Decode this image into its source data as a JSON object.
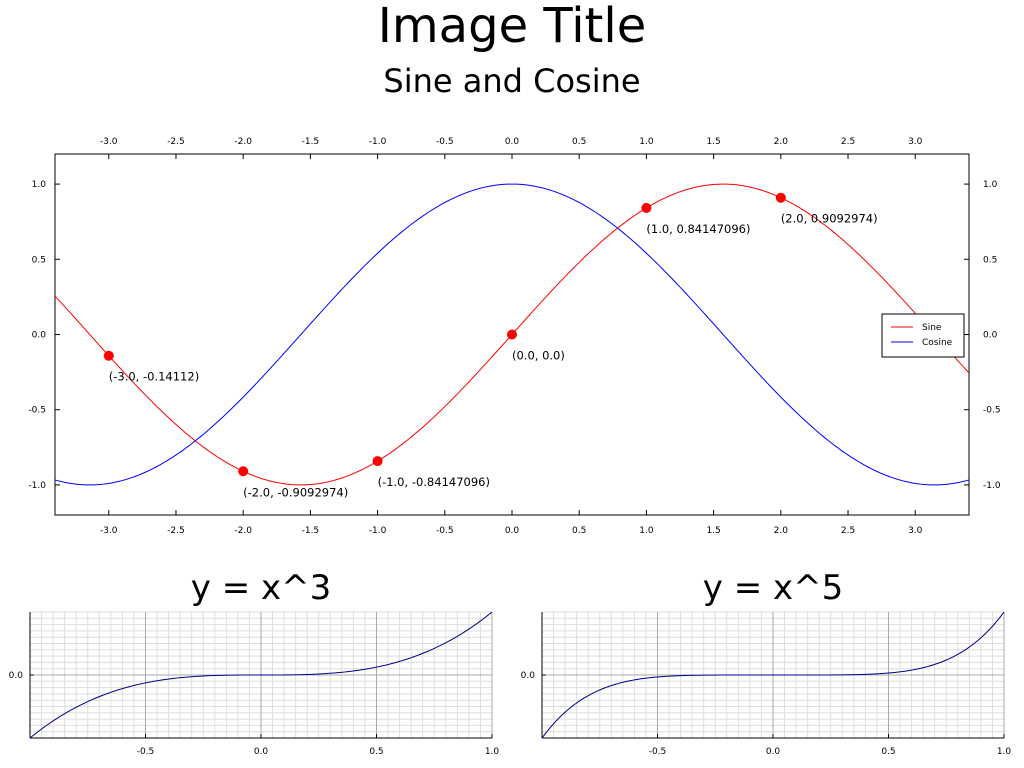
{
  "figure": {
    "title": "Image Title",
    "subtitle": "Sine and Cosine"
  },
  "colors": {
    "sine": "#ff0000",
    "cosine": "#0000ff",
    "marker": "#ff0000",
    "grid_minor": "#dddddd",
    "grid_major": "#aaaaaa",
    "cubic": "#00008b"
  },
  "chart_data": [
    {
      "type": "line",
      "title": "Sine and Cosine",
      "xlim": [
        -3.4,
        3.4
      ],
      "ylim": [
        -1.2,
        1.2
      ],
      "x_ticks": [
        -3.0,
        -2.5,
        -2.0,
        -1.5,
        -1.0,
        -0.5,
        0.0,
        0.5,
        1.0,
        1.5,
        2.0,
        2.5,
        3.0
      ],
      "x_tick_labels": [
        "-3.0",
        "-2.5",
        "-2.0",
        "-1.5",
        "-1.0",
        "-0.5",
        "0.0",
        "0.5",
        "1.0",
        "1.5",
        "2.0",
        "2.5",
        "3.0"
      ],
      "y_ticks": [
        1.0,
        0.5,
        0.0,
        -0.5,
        -1.0
      ],
      "y_tick_labels": [
        "1.0",
        "0.5",
        "0.0",
        "-0.5",
        "-1.0"
      ],
      "ticks_on_all_sides": true,
      "grid": false,
      "legend_position": "right",
      "series": [
        {
          "name": "Sine",
          "function": "sin(x)",
          "color": "#ff0000"
        },
        {
          "name": "Cosine",
          "function": "cos(x)",
          "color": "#0000ff"
        }
      ],
      "annotated_points": [
        {
          "x": -3.0,
          "y": -0.14112,
          "label": "(-3.0, -0.14112)"
        },
        {
          "x": -2.0,
          "y": -0.9092974,
          "label": "(-2.0, -0.9092974)"
        },
        {
          "x": -1.0,
          "y": -0.84147096,
          "label": "(-1.0, -0.84147096)"
        },
        {
          "x": 0.0,
          "y": 0.0,
          "label": "(0.0, 0.0)"
        },
        {
          "x": 1.0,
          "y": 0.84147096,
          "label": "(1.0, 0.84147096)"
        },
        {
          "x": 2.0,
          "y": 0.9092974,
          "label": "(2.0, 0.9092974)"
        }
      ]
    },
    {
      "type": "line",
      "title": "y = x^3",
      "function": "x^3",
      "xlim": [
        -1.0,
        1.0
      ],
      "ylim": [
        -1.0,
        1.0
      ],
      "x_ticks": [
        -0.5,
        0.0,
        0.5,
        1.0
      ],
      "x_tick_labels": [
        "-0.5",
        "0.0",
        "0.5",
        "1.0"
      ],
      "y_ticks": [
        0.0
      ],
      "y_tick_labels": [
        "0.0"
      ],
      "grid": true
    },
    {
      "type": "line",
      "title": "y = x^5",
      "function": "x^5",
      "xlim": [
        -1.0,
        1.0
      ],
      "ylim": [
        -1.0,
        1.0
      ],
      "x_ticks": [
        -0.5,
        0.0,
        0.5,
        1.0
      ],
      "x_tick_labels": [
        "-0.5",
        "0.0",
        "0.5",
        "1.0"
      ],
      "y_ticks": [
        0.0
      ],
      "y_tick_labels": [
        "0.0"
      ],
      "grid": true
    }
  ]
}
